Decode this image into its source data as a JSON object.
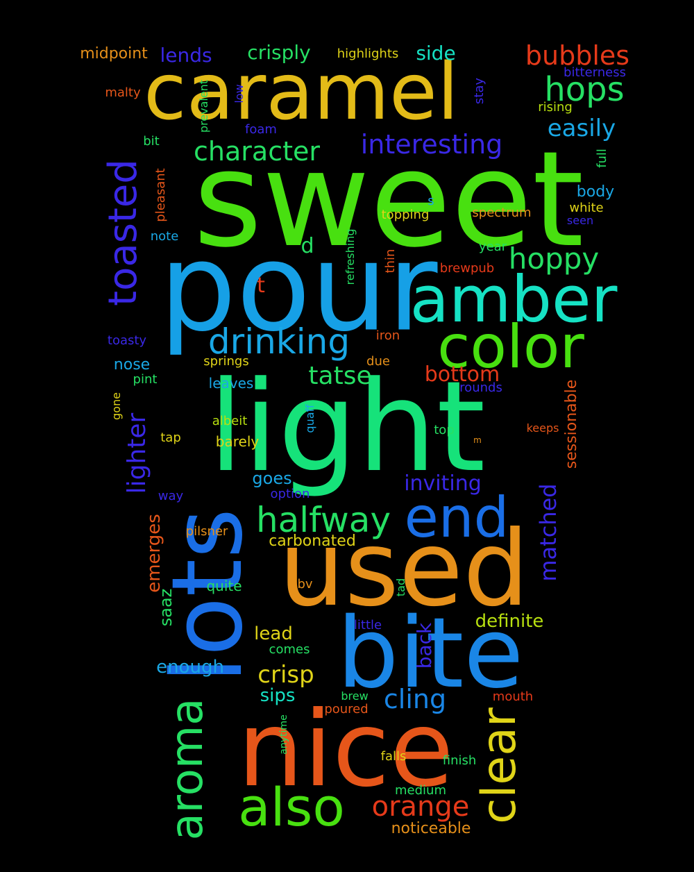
{
  "words": [
    {
      "text": "sweet",
      "color": "#48e010"
    },
    {
      "text": "pour",
      "color": "#16a0e6"
    },
    {
      "text": "light",
      "color": "#16e27a"
    },
    {
      "text": "caramel",
      "color": "#e3bb18"
    },
    {
      "text": "used",
      "color": "#e6901a"
    },
    {
      "text": "nice",
      "color": "#e6561a"
    },
    {
      "text": "bite",
      "color": "#1a86e6"
    },
    {
      "text": "lots",
      "color": "#1a6ee6"
    },
    {
      "text": "amber",
      "color": "#16e2c4"
    },
    {
      "text": "color",
      "color": "#48e010"
    },
    {
      "text": "toasted",
      "color": "#3a28e6"
    },
    {
      "text": "end",
      "color": "#1a6ee6"
    },
    {
      "text": "also",
      "color": "#48e010"
    },
    {
      "text": "aroma",
      "color": "#26e064"
    },
    {
      "text": "clear",
      "color": "#e0d418"
    },
    {
      "text": "halfway",
      "color": "#26e064"
    },
    {
      "text": "drinking",
      "color": "#1aa8e6"
    },
    {
      "text": "hops",
      "color": "#26e064"
    },
    {
      "text": "bubbles",
      "color": "#e63a1a"
    },
    {
      "text": "hoppy",
      "color": "#26e064"
    },
    {
      "text": "interesting",
      "color": "#3a28e6"
    },
    {
      "text": "character",
      "color": "#26e064"
    },
    {
      "text": "orange",
      "color": "#e63a1a"
    },
    {
      "text": "cling",
      "color": "#1a86e6"
    },
    {
      "text": "lighter",
      "color": "#3a28e6"
    },
    {
      "text": "matched",
      "color": "#3a28e6"
    },
    {
      "text": "easily",
      "color": "#1aa8e6"
    },
    {
      "text": "tatse",
      "color": "#26e064"
    },
    {
      "text": "crisp",
      "color": "#e0d418"
    },
    {
      "text": "inviting",
      "color": "#3a28e6"
    },
    {
      "text": "bottom",
      "color": "#e63a1a"
    },
    {
      "text": "crisply",
      "color": "#26e064"
    },
    {
      "text": "lends",
      "color": "#3a28e6"
    },
    {
      "text": "side",
      "color": "#16e2c4"
    },
    {
      "text": "back",
      "color": "#3a28e6"
    },
    {
      "text": "emerges",
      "color": "#e6561a"
    },
    {
      "text": "definite",
      "color": "#b8e010"
    },
    {
      "text": "enough",
      "color": "#1aa8e6"
    },
    {
      "text": "lead",
      "color": "#e0d418"
    },
    {
      "text": "sips",
      "color": "#16e2c4"
    },
    {
      "text": "goes",
      "color": "#1aa8e6"
    },
    {
      "text": "saaz",
      "color": "#26e064"
    },
    {
      "text": "carbonated",
      "color": "#e0d418"
    },
    {
      "text": "sessionable",
      "color": "#e6561a"
    },
    {
      "text": "noticeable",
      "color": "#e6901a"
    },
    {
      "text": "midpoint",
      "color": "#e6901a"
    },
    {
      "text": "highlights",
      "color": "#e0d418"
    },
    {
      "text": "bitterness",
      "color": "#3a28e6"
    },
    {
      "text": "rising",
      "color": "#b8e010"
    },
    {
      "text": "stay",
      "color": "#3a28e6"
    },
    {
      "text": "full",
      "color": "#26e064"
    },
    {
      "text": "body",
      "color": "#1aa8e6"
    },
    {
      "text": "white",
      "color": "#e0d418"
    },
    {
      "text": "seen",
      "color": "#3a28e6"
    },
    {
      "text": "spectrum",
      "color": "#e6901a"
    },
    {
      "text": "topping",
      "color": "#e0d418"
    },
    {
      "text": "s",
      "color": "#1aa8e6"
    },
    {
      "text": "malty",
      "color": "#e6561a"
    },
    {
      "text": "prevalent",
      "color": "#26e064"
    },
    {
      "text": "low",
      "color": "#3a28e6"
    },
    {
      "text": "foam",
      "color": "#3a28e6"
    },
    {
      "text": "bit",
      "color": "#26e064"
    },
    {
      "text": "pleasant",
      "color": "#e6561a"
    },
    {
      "text": "note",
      "color": "#1aa8e6"
    },
    {
      "text": "d",
      "color": "#26e064"
    },
    {
      "text": "t",
      "color": "#e63a1a"
    },
    {
      "text": "refreshing",
      "color": "#26e064"
    },
    {
      "text": "thin",
      "color": "#e6561a"
    },
    {
      "text": "year",
      "color": "#26e064"
    },
    {
      "text": "brewpub",
      "color": "#e63a1a"
    },
    {
      "text": "toasty",
      "color": "#3a28e6"
    },
    {
      "text": "iron",
      "color": "#e6561a"
    },
    {
      "text": "nose",
      "color": "#1aa8e6"
    },
    {
      "text": "springs",
      "color": "#e0d418"
    },
    {
      "text": "due",
      "color": "#e6901a"
    },
    {
      "text": "pint",
      "color": "#26e064"
    },
    {
      "text": "leaves",
      "color": "#1aa8e6"
    },
    {
      "text": "rounds",
      "color": "#3a28e6"
    },
    {
      "text": "gone",
      "color": "#e0d418"
    },
    {
      "text": "albeit",
      "color": "#b8e010"
    },
    {
      "text": "quaff",
      "color": "#1aa8e6"
    },
    {
      "text": "tap",
      "color": "#e0d418"
    },
    {
      "text": "barely",
      "color": "#e0d418"
    },
    {
      "text": "top",
      "color": "#26e064"
    },
    {
      "text": "m",
      "color": "#e6901a"
    },
    {
      "text": "keeps",
      "color": "#e6561a"
    },
    {
      "text": "way",
      "color": "#3a28e6"
    },
    {
      "text": "option",
      "color": "#3a28e6"
    },
    {
      "text": "pilsner",
      "color": "#e6901a"
    },
    {
      "text": "quite",
      "color": "#26e064"
    },
    {
      "text": "abv",
      "color": "#e6901a"
    },
    {
      "text": "tad",
      "color": "#26e064"
    },
    {
      "text": "little",
      "color": "#3a28e6"
    },
    {
      "text": "comes",
      "color": "#26e064"
    },
    {
      "text": "brew",
      "color": "#26e064"
    },
    {
      "text": "poured",
      "color": "#e6561a"
    },
    {
      "text": "mouth",
      "color": "#e63a1a"
    },
    {
      "text": "anytime",
      "color": "#26e064"
    },
    {
      "text": "falls",
      "color": "#e0d418"
    },
    {
      "text": "finish",
      "color": "#26e064"
    },
    {
      "text": "medium",
      "color": "#26e064"
    }
  ]
}
